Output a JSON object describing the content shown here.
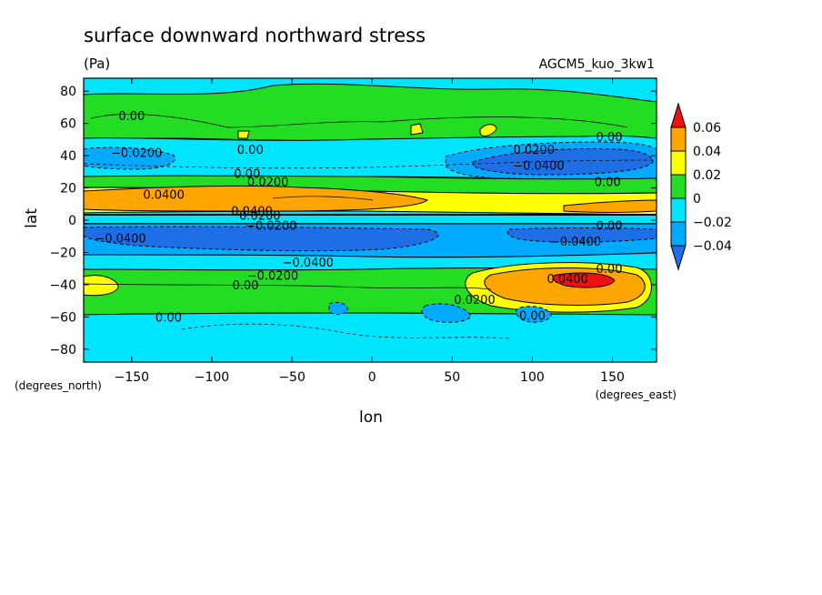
{
  "header": {
    "title": "surface downward northward stress",
    "units": "(Pa)",
    "model": "AGCM5_kuo_3kw1"
  },
  "chart_data": {
    "type": "heatmap",
    "title": "surface downward northward stress",
    "units": "(Pa)",
    "xlabel": "lon",
    "ylabel": "lat",
    "x_unit_label": "(degrees_east)",
    "y_unit_label": "(degrees_north)",
    "xlim": [
      -180,
      177.5
    ],
    "ylim": [
      -88,
      88
    ],
    "x_ticks": [
      -150,
      -100,
      -50,
      0,
      50,
      100,
      150
    ],
    "x_tick_labels": [
      "−150",
      "−100",
      "−50",
      "0",
      "50",
      "100",
      "150"
    ],
    "y_ticks": [
      -80,
      -60,
      -40,
      -20,
      0,
      20,
      40,
      60,
      80
    ],
    "y_tick_labels": [
      "−80",
      "−60",
      "−40",
      "−20",
      "0",
      "20",
      "40",
      "60",
      "80"
    ],
    "colorbar": {
      "levels": [
        -0.04,
        -0.02,
        0,
        0.02,
        0.04,
        0.06
      ],
      "labels": [
        "−0.04",
        "−0.02",
        "0",
        "0.02",
        "0.04",
        "0.06"
      ],
      "colors": [
        "#1e6ee6",
        "#00aaff",
        "#00e5ff",
        "#22dd22",
        "#ffff00",
        "#ffa500",
        "#ee1111"
      ]
    },
    "zonal_bands": [
      {
        "lat_range": [
          72,
          88
        ],
        "value_range": [
          -0.02,
          0
        ]
      },
      {
        "lat_range": [
          48,
          72
        ],
        "value_range": [
          0,
          0.02
        ]
      },
      {
        "lat_range": [
          27,
          48
        ],
        "value_range": [
          -0.04,
          0
        ]
      },
      {
        "lat_range": [
          20,
          27
        ],
        "value_range": [
          0,
          0.02
        ]
      },
      {
        "lat_range": [
          3,
          20
        ],
        "value_range": [
          0.02,
          0.04
        ]
      },
      {
        "lat_range": [
          -3,
          3
        ],
        "value_range": [
          -0.02,
          0.02
        ]
      },
      {
        "lat_range": [
          -20,
          -3
        ],
        "value_range": [
          -0.04,
          -0.02
        ]
      },
      {
        "lat_range": [
          -26,
          -20
        ],
        "value_range": [
          -0.02,
          0
        ]
      },
      {
        "lat_range": [
          -48,
          -26
        ],
        "value_range": [
          0,
          0.02
        ]
      },
      {
        "lat_range": [
          -88,
          -48
        ],
        "value_range": [
          -0.02,
          0
        ]
      }
    ],
    "contour_labels": [
      {
        "text": "0.00",
        "lon": -150,
        "lat": 65
      },
      {
        "text": "−0.0200",
        "lon": -147,
        "lat": 42
      },
      {
        "text": "0.00",
        "lon": -76,
        "lat": 44
      },
      {
        "text": "0.00",
        "lon": -78,
        "lat": 29
      },
      {
        "text": "0.0200",
        "lon": -65,
        "lat": 24
      },
      {
        "text": "0.0400",
        "lon": -130,
        "lat": 16
      },
      {
        "text": "0.0400",
        "lon": -75,
        "lat": 6
      },
      {
        "text": "0.0200",
        "lon": -70,
        "lat": 3
      },
      {
        "text": "−0.0200",
        "lon": -63,
        "lat": -3
      },
      {
        "text": "−0.0400",
        "lon": -157,
        "lat": -11
      },
      {
        "text": "−0.0400",
        "lon": -40,
        "lat": -26
      },
      {
        "text": "−0.0200",
        "lon": -62,
        "lat": -34
      },
      {
        "text": "0.00",
        "lon": -79,
        "lat": -40
      },
      {
        "text": "0.00",
        "lon": -127,
        "lat": -60
      },
      {
        "text": "0.0200",
        "lon": 101,
        "lat": 44
      },
      {
        "text": "−0.0400",
        "lon": 104,
        "lat": 34
      },
      {
        "text": "0.00",
        "lon": 148,
        "lat": 52
      },
      {
        "text": "0.00",
        "lon": 147,
        "lat": 24
      },
      {
        "text": "0.00",
        "lon": 148,
        "lat": -3
      },
      {
        "text": "−0.0400",
        "lon": 127,
        "lat": -13
      },
      {
        "text": "0.00",
        "lon": 148,
        "lat": -30
      },
      {
        "text": "0.0400",
        "lon": 122,
        "lat": -36
      },
      {
        "text": "0.0200",
        "lon": 64,
        "lat": -49
      },
      {
        "text": "0.00",
        "lon": 100,
        "lat": -59
      }
    ]
  }
}
